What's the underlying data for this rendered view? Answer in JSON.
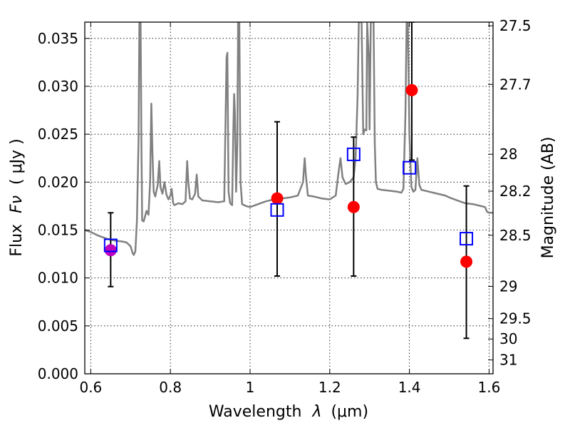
{
  "chart_data": {
    "type": "scatter",
    "xlabel_text": "Wavelength",
    "xlabel_symbol": "λ",
    "xlabel_unit": "(μm)",
    "ylabel_text": "Flux",
    "ylabel_symbol": "Fν",
    "ylabel_unit": "( μJy )",
    "y2label": "Magnitude (AB)",
    "xlim": [
      0.585,
      1.61
    ],
    "ylim": [
      0.0,
      0.0367
    ],
    "grid": true,
    "x_ticks": [
      {
        "value": 0.6,
        "label": "0.6"
      },
      {
        "value": 0.8,
        "label": "0.8"
      },
      {
        "value": 1.0,
        "label": "1"
      },
      {
        "value": 1.2,
        "label": "1.2"
      },
      {
        "value": 1.4,
        "label": "1.4"
      },
      {
        "value": 1.6,
        "label": "1.6"
      }
    ],
    "y_ticks": [
      {
        "value": 0.0,
        "label": "0.000"
      },
      {
        "value": 0.005,
        "label": "0.005"
      },
      {
        "value": 0.01,
        "label": "0.010"
      },
      {
        "value": 0.015,
        "label": "0.015"
      },
      {
        "value": 0.02,
        "label": "0.020"
      },
      {
        "value": 0.025,
        "label": "0.025"
      },
      {
        "value": 0.03,
        "label": "0.030"
      },
      {
        "value": 0.035,
        "label": "0.035"
      }
    ],
    "y2_ticks": [
      {
        "value": 27.5,
        "label": "27.5"
      },
      {
        "value": 27.7,
        "label": "27.7"
      },
      {
        "value": 28.0,
        "label": "28"
      },
      {
        "value": 28.2,
        "label": "28.2"
      },
      {
        "value": 28.5,
        "label": "28.5"
      },
      {
        "value": 29.0,
        "label": "29"
      },
      {
        "value": 29.5,
        "label": "29.5"
      },
      {
        "value": 30.0,
        "label": "30"
      },
      {
        "value": 31.0,
        "label": "31"
      }
    ],
    "observed_points": [
      {
        "x": 0.65,
        "y": 0.0129,
        "yerr_low": 0.0091,
        "yerr_high": 0.0168,
        "color": "#bf00bf"
      },
      {
        "x": 1.068,
        "y": 0.0183,
        "yerr_low": 0.0102,
        "yerr_high": 0.0263,
        "color": "#ff0000"
      },
      {
        "x": 1.26,
        "y": 0.0174,
        "yerr_low": 0.0102,
        "yerr_high": 0.0247,
        "color": "#ff0000"
      },
      {
        "x": 1.406,
        "y": 0.0296,
        "yerr_low": 0.0223,
        "yerr_high": 0.0367,
        "color": "#ff0000"
      },
      {
        "x": 1.543,
        "y": 0.0117,
        "yerr_low": 0.0037,
        "yerr_high": 0.0196,
        "color": "#ff0000"
      }
    ],
    "model_points": [
      {
        "x": 0.65,
        "y": 0.0134
      },
      {
        "x": 1.068,
        "y": 0.0171
      },
      {
        "x": 1.26,
        "y": 0.0229
      },
      {
        "x": 1.4,
        "y": 0.0215
      },
      {
        "x": 1.543,
        "y": 0.0141
      }
    ],
    "spectrum": {
      "color": "#808080",
      "points": [
        [
          0.585,
          0.015
        ],
        [
          0.6,
          0.0148
        ],
        [
          0.62,
          0.0144
        ],
        [
          0.64,
          0.0141
        ],
        [
          0.66,
          0.0139
        ],
        [
          0.68,
          0.0138
        ],
        [
          0.69,
          0.0137
        ],
        [
          0.7,
          0.0133
        ],
        [
          0.705,
          0.0126
        ],
        [
          0.708,
          0.0124
        ],
        [
          0.712,
          0.0128
        ],
        [
          0.716,
          0.016
        ],
        [
          0.72,
          0.0245
        ],
        [
          0.722,
          0.0367
        ],
        [
          0.725,
          0.0367
        ],
        [
          0.727,
          0.025
        ],
        [
          0.729,
          0.016
        ],
        [
          0.733,
          0.0159
        ],
        [
          0.74,
          0.017
        ],
        [
          0.745,
          0.0166
        ],
        [
          0.749,
          0.02
        ],
        [
          0.752,
          0.0282
        ],
        [
          0.755,
          0.023
        ],
        [
          0.758,
          0.019
        ],
        [
          0.762,
          0.0185
        ],
        [
          0.768,
          0.0197
        ],
        [
          0.772,
          0.0222
        ],
        [
          0.775,
          0.0195
        ],
        [
          0.78,
          0.0188
        ],
        [
          0.785,
          0.02
        ],
        [
          0.79,
          0.0187
        ],
        [
          0.795,
          0.0182
        ],
        [
          0.8,
          0.0186
        ],
        [
          0.803,
          0.0193
        ],
        [
          0.807,
          0.0178
        ],
        [
          0.81,
          0.0176
        ],
        [
          0.82,
          0.0178
        ],
        [
          0.83,
          0.0177
        ],
        [
          0.838,
          0.018
        ],
        [
          0.842,
          0.0222
        ],
        [
          0.845,
          0.02
        ],
        [
          0.849,
          0.0183
        ],
        [
          0.855,
          0.0182
        ],
        [
          0.862,
          0.0188
        ],
        [
          0.866,
          0.0208
        ],
        [
          0.87,
          0.0185
        ],
        [
          0.88,
          0.0181
        ],
        [
          0.9,
          0.018
        ],
        [
          0.92,
          0.0179
        ],
        [
          0.935,
          0.018
        ],
        [
          0.941,
          0.033
        ],
        [
          0.943,
          0.0335
        ],
        [
          0.946,
          0.019
        ],
        [
          0.95,
          0.0178
        ],
        [
          0.955,
          0.0176
        ],
        [
          0.958,
          0.0255
        ],
        [
          0.96,
          0.0292
        ],
        [
          0.962,
          0.027
        ],
        [
          0.965,
          0.019
        ],
        [
          0.968,
          0.024
        ],
        [
          0.97,
          0.0367
        ],
        [
          0.973,
          0.0367
        ],
        [
          0.976,
          0.02
        ],
        [
          0.98,
          0.0177
        ],
        [
          0.99,
          0.0175
        ],
        [
          1.0,
          0.0174
        ],
        [
          1.02,
          0.0177
        ],
        [
          1.04,
          0.018
        ],
        [
          1.06,
          0.0182
        ],
        [
          1.08,
          0.0183
        ],
        [
          1.1,
          0.0184
        ],
        [
          1.12,
          0.0186
        ],
        [
          1.133,
          0.02
        ],
        [
          1.137,
          0.0225
        ],
        [
          1.14,
          0.0207
        ],
        [
          1.145,
          0.0186
        ],
        [
          1.16,
          0.0185
        ],
        [
          1.18,
          0.0183
        ],
        [
          1.2,
          0.0182
        ],
        [
          1.215,
          0.0186
        ],
        [
          1.222,
          0.021
        ],
        [
          1.227,
          0.0225
        ],
        [
          1.232,
          0.0205
        ],
        [
          1.24,
          0.0198
        ],
        [
          1.25,
          0.02
        ],
        [
          1.26,
          0.0205
        ],
        [
          1.265,
          0.0225
        ],
        [
          1.27,
          0.029
        ],
        [
          1.273,
          0.0367
        ],
        [
          1.28,
          0.0367
        ],
        [
          1.284,
          0.025
        ],
        [
          1.288,
          0.0255
        ],
        [
          1.292,
          0.0254
        ],
        [
          1.294,
          0.0367
        ],
        [
          1.298,
          0.033
        ],
        [
          1.3,
          0.0255
        ],
        [
          1.303,
          0.0367
        ],
        [
          1.31,
          0.0367
        ],
        [
          1.313,
          0.024
        ],
        [
          1.316,
          0.02
        ],
        [
          1.32,
          0.0193
        ],
        [
          1.33,
          0.0192
        ],
        [
          1.35,
          0.0191
        ],
        [
          1.37,
          0.019
        ],
        [
          1.38,
          0.0189
        ],
        [
          1.385,
          0.0193
        ],
        [
          1.39,
          0.027
        ],
        [
          1.393,
          0.0367
        ],
        [
          1.396,
          0.0367
        ],
        [
          1.4,
          0.025
        ],
        [
          1.405,
          0.0195
        ],
        [
          1.41,
          0.019
        ],
        [
          1.415,
          0.0192
        ],
        [
          1.42,
          0.0225
        ],
        [
          1.425,
          0.0197
        ],
        [
          1.43,
          0.0192
        ],
        [
          1.45,
          0.019
        ],
        [
          1.47,
          0.0188
        ],
        [
          1.49,
          0.0186
        ],
        [
          1.5,
          0.0184
        ],
        [
          1.52,
          0.0181
        ],
        [
          1.54,
          0.0178
        ],
        [
          1.56,
          0.0177
        ],
        [
          1.58,
          0.0175
        ],
        [
          1.59,
          0.0174
        ],
        [
          1.595,
          0.0169
        ],
        [
          1.6,
          0.0168
        ],
        [
          1.61,
          0.0168
        ]
      ]
    }
  }
}
